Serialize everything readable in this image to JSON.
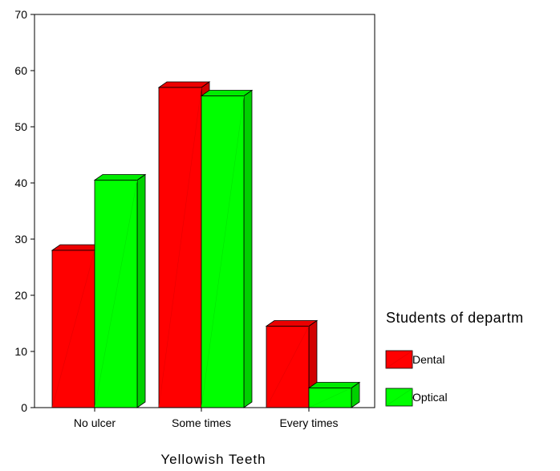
{
  "chart_data": {
    "type": "bar",
    "style": "3d-clustered",
    "categories": [
      "No ulcer",
      "Some times",
      "Every times"
    ],
    "series": [
      {
        "name": "Dental",
        "values": [
          28,
          57,
          14.5
        ],
        "color": "#ff0000"
      },
      {
        "name": "Optical",
        "values": [
          40.5,
          55.5,
          3.5
        ],
        "color": "#00ff00"
      }
    ],
    "xlabel": "Yellowish Teeth",
    "ylabel": "",
    "ylim": [
      0,
      70
    ],
    "yticks": [
      0,
      10,
      20,
      30,
      40,
      50,
      60,
      70
    ],
    "grid": false,
    "legend": {
      "title": "Students of departm",
      "placement": "right"
    }
  }
}
